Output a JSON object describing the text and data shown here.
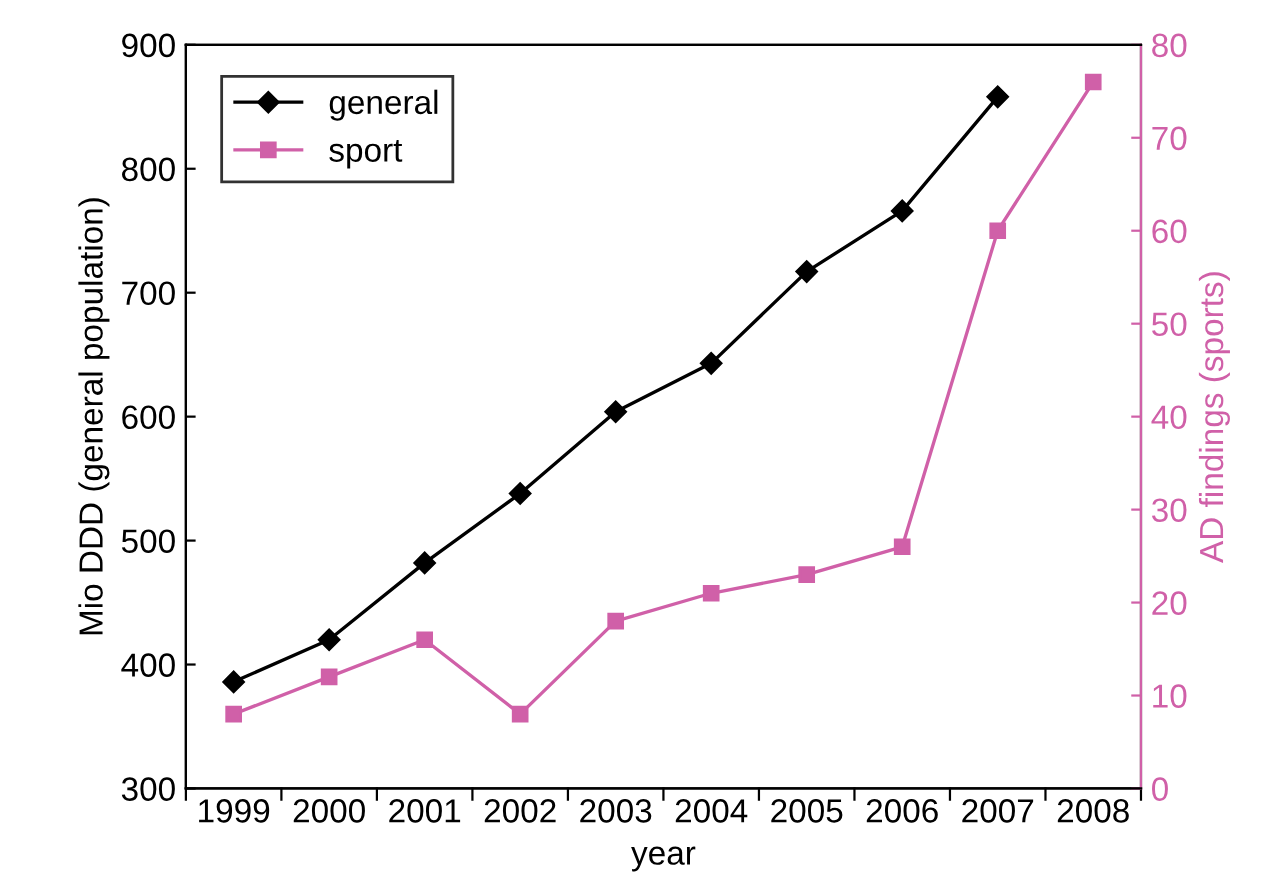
{
  "chart_data": {
    "type": "line",
    "xlabel": "year",
    "ylabel": "Mio DDD (general population)",
    "y2label": "AD findings (sports)",
    "categories": [
      "1999",
      "2000",
      "2001",
      "2002",
      "2003",
      "2004",
      "2005",
      "2006",
      "2007",
      "2008"
    ],
    "series": [
      {
        "name": "general",
        "color": "#000000",
        "marker": "diamond",
        "values": [
          386,
          420,
          482,
          538,
          604,
          643,
          717,
          766,
          858,
          null
        ]
      },
      {
        "name": "sport",
        "color": "#d060a8",
        "marker": "square",
        "axis": "y2",
        "values": [
          8,
          12,
          16,
          8,
          18,
          21,
          23,
          26,
          60,
          76
        ]
      }
    ],
    "ylim": [
      300,
      900
    ],
    "yticks": [
      300,
      400,
      500,
      600,
      700,
      800,
      900
    ],
    "y2lim": [
      0,
      80
    ],
    "y2ticks": [
      0,
      10,
      20,
      30,
      40,
      50,
      60,
      70,
      80
    ],
    "legend": "top left",
    "grid": false
  }
}
